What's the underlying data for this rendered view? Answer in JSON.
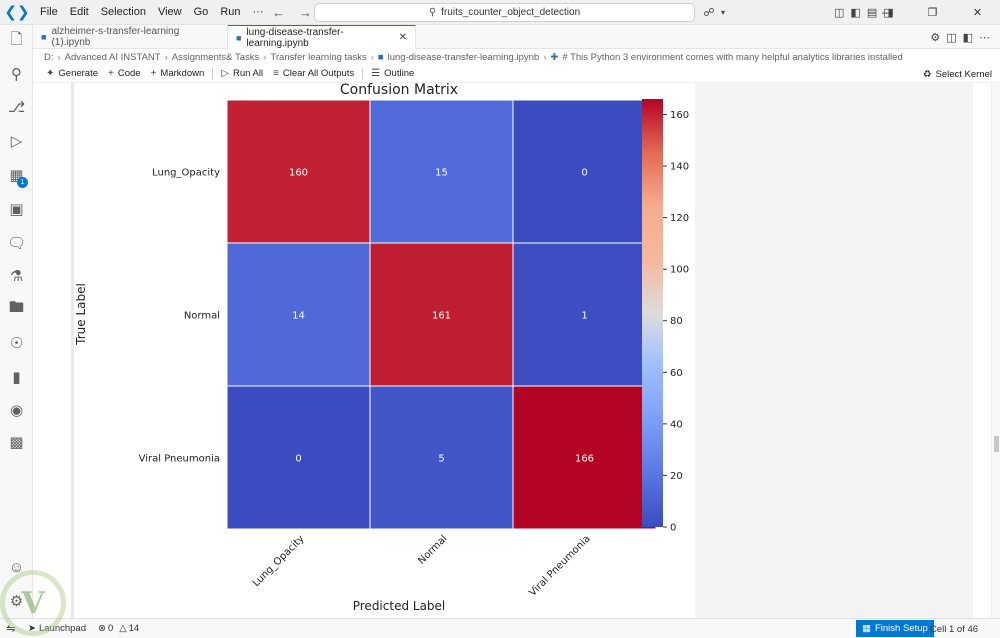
{
  "titlebar": {
    "menus": [
      "File",
      "Edit",
      "Selection",
      "View",
      "Go",
      "Run",
      "···"
    ],
    "search_text": "fruits_counter_object_detection"
  },
  "tabs": [
    {
      "label": "alzheimer-s-transfer-learning (1).ipynb",
      "active": false
    },
    {
      "label": "lung-disease-transfer-learning.ipynb",
      "active": true
    }
  ],
  "breadcrumb": {
    "parts": [
      "D:",
      "Advanced AI INSTANT",
      "Assignments& Tasks",
      "Transfer learning tasks",
      "lung-disease-transfer-learning.ipynb"
    ],
    "cell_text": "# This Python 3 environment comes with many helpful analytics libraries installed"
  },
  "toolbar": {
    "generate": "Generate",
    "code": "Code",
    "markdown": "Markdown",
    "run_all": "Run All",
    "clear_outputs": "Clear All Outputs",
    "outline": "Outline",
    "select_kernel": "Select Kernel"
  },
  "activity_badge": "1",
  "chart_data": {
    "type": "heatmap",
    "title": "Confusion Matrix",
    "xlabel": "Predicted Label",
    "ylabel": "True Label",
    "x_categories": [
      "Lung_Opacity",
      "Normal",
      "Viral Pneumonia"
    ],
    "y_categories": [
      "Lung_Opacity",
      "Normal",
      "Viral Pneumonia"
    ],
    "values": [
      [
        160,
        15,
        0
      ],
      [
        14,
        161,
        1
      ],
      [
        0,
        5,
        166
      ]
    ],
    "colormap": "coolwarm",
    "colorbar_range": [
      0,
      166
    ],
    "colorbar_ticks": [
      0,
      20,
      40,
      60,
      80,
      100,
      120,
      140,
      160
    ]
  },
  "statusbar": {
    "launchpad": "Launchpad",
    "errors": "0",
    "warnings": "14",
    "finish_setup": "Finish Setup",
    "cell_position": "Cell 1 of 46"
  }
}
